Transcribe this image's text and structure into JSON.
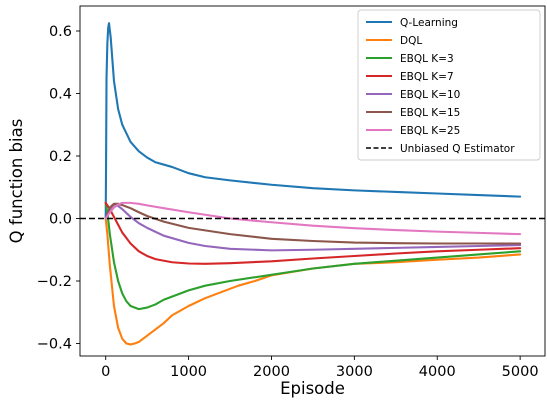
{
  "chart_data": {
    "type": "line",
    "title": "",
    "xlabel": "Episode",
    "ylabel": "Q function bias",
    "xlim": [
      -310,
      5300
    ],
    "ylim": [
      -0.44,
      0.68
    ],
    "xticks": [
      0,
      1000,
      2000,
      3000,
      4000,
      5000
    ],
    "xtick_labels": [
      "0",
      "1000",
      "2000",
      "3000",
      "4000",
      "5000"
    ],
    "yticks": [
      -0.4,
      -0.2,
      0.0,
      0.2,
      0.4,
      0.6
    ],
    "ytick_labels": [
      "−0.4",
      "−0.2",
      "0.0",
      "0.2",
      "0.4",
      "0.6"
    ],
    "grid": false,
    "legend_position": "top-right",
    "series": [
      {
        "name": "Q-Learning",
        "color": "#1f77b4",
        "style": "solid",
        "x": [
          0,
          5,
          10,
          20,
          30,
          40,
          60,
          80,
          100,
          150,
          200,
          300,
          400,
          500,
          600,
          800,
          1000,
          1200,
          1500,
          2000,
          2500,
          3000,
          3500,
          4000,
          4500,
          5000
        ],
        "y": [
          0.0,
          0.2,
          0.45,
          0.56,
          0.61,
          0.625,
          0.58,
          0.51,
          0.44,
          0.35,
          0.3,
          0.245,
          0.215,
          0.195,
          0.18,
          0.165,
          0.145,
          0.132,
          0.122,
          0.108,
          0.097,
          0.09,
          0.085,
          0.08,
          0.075,
          0.07
        ]
      },
      {
        "name": "DQL",
        "color": "#ff7f0e",
        "style": "solid",
        "x": [
          0,
          20,
          50,
          100,
          150,
          200,
          250,
          300,
          350,
          400,
          500,
          600,
          700,
          800,
          1000,
          1200,
          1400,
          1600,
          1800,
          2000,
          2500,
          3000,
          3500,
          4000,
          4500,
          5000
        ],
        "y": [
          0.0,
          -0.05,
          -0.15,
          -0.28,
          -0.35,
          -0.385,
          -0.4,
          -0.403,
          -0.4,
          -0.395,
          -0.375,
          -0.355,
          -0.335,
          -0.31,
          -0.28,
          -0.255,
          -0.235,
          -0.215,
          -0.2,
          -0.182,
          -0.16,
          -0.145,
          -0.14,
          -0.132,
          -0.125,
          -0.115
        ]
      },
      {
        "name": "EBQL K=3",
        "color": "#2ca02c",
        "style": "solid",
        "x": [
          0,
          20,
          50,
          100,
          150,
          200,
          250,
          300,
          400,
          500,
          600,
          700,
          800,
          1000,
          1200,
          1500,
          2000,
          2500,
          3000,
          3500,
          4000,
          4500,
          5000
        ],
        "y": [
          0.05,
          0.02,
          -0.05,
          -0.14,
          -0.2,
          -0.24,
          -0.265,
          -0.28,
          -0.29,
          -0.285,
          -0.275,
          -0.26,
          -0.25,
          -0.23,
          -0.215,
          -0.2,
          -0.18,
          -0.16,
          -0.145,
          -0.135,
          -0.125,
          -0.115,
          -0.105
        ]
      },
      {
        "name": "EBQL K=7",
        "color": "#d62728",
        "style": "solid",
        "x": [
          0,
          50,
          100,
          150,
          200,
          300,
          400,
          500,
          600,
          800,
          1000,
          1200,
          1500,
          2000,
          2500,
          3000,
          3500,
          4000,
          4500,
          5000
        ],
        "y": [
          0.05,
          0.03,
          0.005,
          -0.02,
          -0.045,
          -0.08,
          -0.105,
          -0.12,
          -0.13,
          -0.14,
          -0.144,
          -0.145,
          -0.143,
          -0.137,
          -0.128,
          -0.12,
          -0.112,
          -0.105,
          -0.1,
          -0.095
        ]
      },
      {
        "name": "EBQL K=10",
        "color": "#9467bd",
        "style": "solid",
        "x": [
          0,
          50,
          100,
          150,
          200,
          300,
          400,
          500,
          700,
          1000,
          1200,
          1500,
          2000,
          2500,
          3000,
          3500,
          4000,
          4500,
          5000
        ],
        "y": [
          0.0,
          0.03,
          0.045,
          0.04,
          0.03,
          0.005,
          -0.015,
          -0.03,
          -0.055,
          -0.078,
          -0.088,
          -0.097,
          -0.102,
          -0.1,
          -0.097,
          -0.094,
          -0.091,
          -0.088,
          -0.085
        ]
      },
      {
        "name": "EBQL K=15",
        "color": "#8c564b",
        "style": "solid",
        "x": [
          0,
          50,
          100,
          150,
          200,
          300,
          400,
          500,
          700,
          1000,
          1500,
          2000,
          2500,
          3000,
          3500,
          4000,
          4500,
          5000
        ],
        "y": [
          0.0,
          0.035,
          0.047,
          0.047,
          0.043,
          0.033,
          0.02,
          0.008,
          -0.01,
          -0.03,
          -0.05,
          -0.065,
          -0.072,
          -0.077,
          -0.079,
          -0.08,
          -0.08,
          -0.08
        ]
      },
      {
        "name": "EBQL K=25",
        "color": "#e377c2",
        "style": "solid",
        "x": [
          0,
          50,
          100,
          150,
          200,
          300,
          400,
          500,
          700,
          1000,
          1500,
          2000,
          2500,
          3000,
          3500,
          4000,
          4500,
          5000
        ],
        "y": [
          0.0,
          0.02,
          0.035,
          0.045,
          0.05,
          0.05,
          0.047,
          0.042,
          0.033,
          0.02,
          0.0,
          -0.012,
          -0.023,
          -0.031,
          -0.037,
          -0.042,
          -0.046,
          -0.05
        ]
      },
      {
        "name": "Unbiased Q Estimator",
        "color": "#000000",
        "style": "dashed",
        "x": [
          -310,
          5300
        ],
        "y": [
          0.0,
          0.0
        ]
      }
    ]
  }
}
